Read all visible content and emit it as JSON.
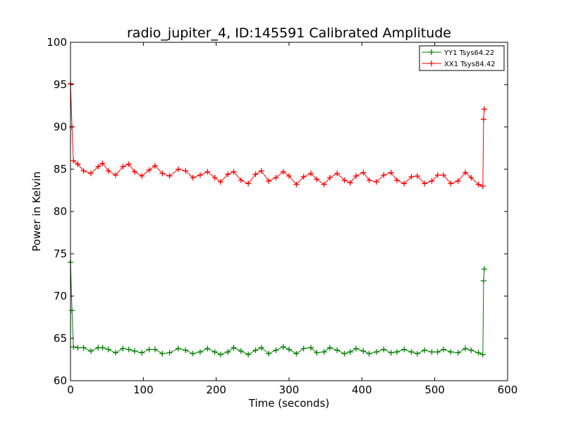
{
  "chart_data": {
    "type": "line",
    "title": "radio_jupiter_4, ID:145591 Calibrated Amplitude",
    "xlabel": "Time (seconds)",
    "ylabel": "Power in Kelvin",
    "xlim": [
      0,
      600
    ],
    "ylim": [
      60,
      100
    ],
    "x_ticks": [
      "0",
      "100",
      "200",
      "300",
      "400",
      "500",
      "600"
    ],
    "y_ticks": [
      "60",
      "65",
      "70",
      "75",
      "80",
      "85",
      "90",
      "95",
      "100"
    ],
    "grid": false,
    "legend_position": "top-right",
    "x": [
      0,
      2,
      4,
      10,
      18,
      28,
      38,
      44,
      52,
      62,
      72,
      80,
      88,
      98,
      108,
      116,
      126,
      136,
      148,
      158,
      168,
      178,
      188,
      198,
      206,
      216,
      224,
      234,
      244,
      254,
      262,
      272,
      282,
      292,
      300,
      310,
      320,
      330,
      338,
      348,
      356,
      366,
      376,
      384,
      392,
      402,
      410,
      420,
      430,
      440,
      448,
      458,
      468,
      476,
      486,
      496,
      504,
      512,
      522,
      532,
      542,
      550,
      560,
      566,
      567,
      568
    ],
    "series": [
      {
        "name": "YY1 Tsys64.22",
        "color": "#008000",
        "values": [
          74.0,
          68.3,
          64.0,
          63.9,
          63.9,
          63.5,
          63.9,
          63.9,
          63.7,
          63.3,
          63.8,
          63.7,
          63.5,
          63.3,
          63.7,
          63.7,
          63.2,
          63.3,
          63.8,
          63.6,
          63.2,
          63.4,
          63.8,
          63.4,
          63.1,
          63.4,
          63.9,
          63.5,
          63.1,
          63.6,
          63.9,
          63.2,
          63.6,
          64.0,
          63.7,
          63.2,
          63.8,
          63.9,
          63.3,
          63.4,
          63.9,
          63.6,
          63.2,
          63.4,
          63.8,
          63.5,
          63.2,
          63.4,
          63.7,
          63.3,
          63.4,
          63.7,
          63.4,
          63.2,
          63.6,
          63.4,
          63.4,
          63.7,
          63.4,
          63.3,
          63.8,
          63.6,
          63.3,
          63.1,
          71.8,
          73.2
        ]
      },
      {
        "name": "XX1 Tsys84.42",
        "color": "#ff0000",
        "values": [
          95.1,
          90.0,
          86.0,
          85.6,
          84.8,
          84.5,
          85.3,
          85.7,
          84.8,
          84.3,
          85.3,
          85.6,
          84.7,
          84.2,
          84.9,
          85.4,
          84.5,
          84.2,
          85.0,
          84.8,
          84.0,
          84.3,
          84.7,
          84.0,
          83.5,
          84.4,
          84.7,
          83.7,
          83.3,
          84.4,
          84.8,
          83.6,
          84.0,
          84.7,
          84.2,
          83.2,
          84.1,
          84.5,
          83.8,
          83.2,
          84.0,
          84.5,
          83.7,
          83.4,
          84.2,
          84.6,
          83.7,
          83.5,
          84.3,
          84.6,
          83.7,
          83.3,
          84.1,
          84.2,
          83.3,
          83.6,
          84.3,
          84.3,
          83.3,
          83.6,
          84.6,
          84.0,
          83.2,
          83.0,
          90.9,
          92.1
        ]
      }
    ]
  }
}
